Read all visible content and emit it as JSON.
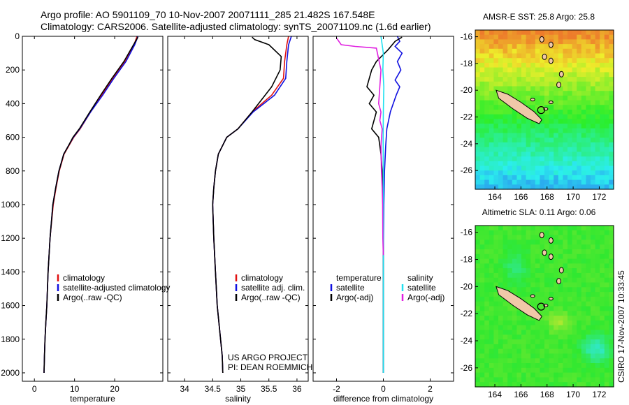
{
  "header": {
    "line1": "Argo profile: AO 5901109_70 10-Nov-2007 20071111_285 21.482S 167.548E",
    "line2": "Climatology: CARS2006. Satellite-adjusted climatology: synTS_20071109.nc (1.6d earlier)"
  },
  "credit": {
    "project": "US ARGO PROJECT",
    "pi": "PI: DEAN ROEMMICH",
    "stamp": "CSIRO 17-Nov-2007 10:33:45"
  },
  "colors": {
    "climatology": "#e01010",
    "satellite": "#1010e0",
    "argo": "#000000",
    "salinity_sat": "#20e0f0",
    "salinity_argo": "#e020e0"
  },
  "chart_data": [
    {
      "type": "line",
      "id": "temperature",
      "xlabel": "temperature",
      "ylabel": "",
      "xlim": [
        -3,
        32
      ],
      "ylim": [
        2050,
        0
      ],
      "xticks": [
        0,
        10,
        20
      ],
      "yticks": [
        0,
        200,
        400,
        600,
        800,
        1000,
        1200,
        1400,
        1600,
        1800,
        2000
      ],
      "legend": [
        "climatology",
        "satellite-adjusted climatology",
        "Argo(..raw -QC)"
      ],
      "series": [
        {
          "name": "climatology",
          "color_key": "climatology",
          "x": [
            25.6,
            24.8,
            22.5,
            19.5,
            16.8,
            14.0,
            11.4,
            9.8,
            8.6,
            7.4,
            6.2,
            5.4,
            4.7,
            3.9,
            3.4,
            3.1,
            2.85,
            2.65,
            2.5,
            2.4
          ],
          "y": [
            0,
            50,
            150,
            250,
            350,
            450,
            550,
            600,
            650,
            700,
            800,
            900,
            1000,
            1200,
            1400,
            1600,
            1700,
            1800,
            1900,
            2000
          ]
        },
        {
          "name": "satellite",
          "color_key": "satellite",
          "x": [
            25.8,
            25.0,
            22.8,
            19.8,
            17.0,
            14.0,
            11.3,
            9.7,
            8.5,
            7.3,
            6.1,
            5.3,
            4.6,
            3.9,
            3.4,
            3.1,
            2.85,
            2.65,
            2.5,
            2.4
          ],
          "y": [
            0,
            50,
            150,
            250,
            350,
            450,
            550,
            600,
            650,
            700,
            800,
            900,
            1000,
            1200,
            1400,
            1600,
            1700,
            1800,
            1900,
            2000
          ]
        },
        {
          "name": "Argo",
          "color_key": "argo",
          "x": [
            25.8,
            24.7,
            22.3,
            19.3,
            16.5,
            13.8,
            11.2,
            9.6,
            8.5,
            7.3,
            6.1,
            5.3,
            4.6,
            3.9,
            3.4,
            3.1,
            2.85,
            2.65,
            2.5,
            2.4
          ],
          "y": [
            5,
            50,
            150,
            250,
            350,
            450,
            550,
            600,
            650,
            700,
            800,
            900,
            1000,
            1200,
            1400,
            1600,
            1700,
            1800,
            1900,
            2000
          ]
        }
      ]
    },
    {
      "type": "line",
      "id": "salinity",
      "xlabel": "salinity",
      "ylabel": "",
      "xlim": [
        33.7,
        36.2
      ],
      "ylim": [
        2050,
        0
      ],
      "xticks": [
        34,
        34.5,
        35,
        35.5,
        36
      ],
      "legend": [
        "climatology",
        "satellite adj. clim.",
        "Argo(..raw -QC)"
      ],
      "series": [
        {
          "name": "climatology",
          "color_key": "climatology",
          "x": [
            35.85,
            35.82,
            35.78,
            35.76,
            35.55,
            35.2,
            34.95,
            34.75,
            34.6,
            34.55,
            34.52,
            34.5,
            34.52,
            34.55,
            34.58,
            34.61,
            34.64,
            34.67,
            34.68
          ],
          "y": [
            0,
            50,
            150,
            250,
            350,
            450,
            550,
            600,
            700,
            800,
            900,
            1000,
            1200,
            1400,
            1600,
            1700,
            1800,
            1900,
            2000
          ]
        },
        {
          "name": "satellite",
          "color_key": "satellite",
          "x": [
            35.9,
            35.85,
            35.82,
            35.8,
            35.6,
            35.22,
            34.95,
            34.75,
            34.6,
            34.55,
            34.52,
            34.5,
            34.52,
            34.55,
            34.58,
            34.61,
            34.64,
            34.67,
            34.68
          ],
          "y": [
            0,
            50,
            150,
            250,
            350,
            450,
            550,
            600,
            700,
            800,
            900,
            1000,
            1200,
            1400,
            1600,
            1700,
            1800,
            1900,
            2000
          ]
        },
        {
          "name": "Argo",
          "color_key": "argo",
          "x": [
            35.2,
            35.25,
            35.5,
            35.72,
            35.7,
            35.55,
            35.2,
            34.95,
            34.75,
            34.6,
            34.55,
            34.52,
            34.5,
            34.52,
            34.55,
            34.58,
            34.61,
            34.64,
            34.67,
            34.68
          ],
          "y": [
            5,
            20,
            50,
            120,
            200,
            300,
            450,
            550,
            600,
            700,
            800,
            900,
            1000,
            1200,
            1400,
            1600,
            1700,
            1800,
            1900,
            2000
          ]
        }
      ]
    },
    {
      "type": "line",
      "id": "difference",
      "xlabel": "difference from climatology",
      "ylabel": "",
      "xlim": [
        -3,
        3
      ],
      "ylim": [
        2050,
        0
      ],
      "xticks": [
        -2,
        0,
        2
      ],
      "legend_temperature": [
        "temperature",
        "satellite",
        "Argo(-adj)"
      ],
      "legend_salinity": [
        "salinity",
        "satellite",
        "Argo(-adj)"
      ],
      "series": [
        {
          "name": "temperature satellite",
          "color_key": "satellite",
          "x": [
            0.6,
            0.7,
            0.5,
            0.8,
            0.6,
            0.75,
            0.5,
            0.7,
            0.55,
            0.3,
            0.15,
            0.1,
            0.05,
            0.02,
            0.0,
            0.0,
            0.0,
            0.0
          ],
          "y": [
            0,
            30,
            60,
            100,
            150,
            200,
            260,
            300,
            350,
            450,
            550,
            650,
            800,
            1000,
            1300,
            1600,
            1800,
            2000
          ]
        },
        {
          "name": "temperature Argo",
          "color_key": "argo",
          "x": [
            0.8,
            0.5,
            0.2,
            -0.3,
            -0.5,
            -0.7,
            -0.4,
            -0.6,
            -0.3,
            -0.5,
            -0.2,
            -0.1,
            -0.05,
            -0.02,
            0.0,
            0.0,
            0.0
          ],
          "y": [
            5,
            30,
            80,
            150,
            200,
            300,
            350,
            400,
            450,
            550,
            600,
            700,
            800,
            1000,
            1300,
            1600,
            2000
          ]
        },
        {
          "name": "salinity satellite",
          "color_key": "salinity_sat",
          "x": [
            -0.1,
            -0.05,
            0.0,
            -0.02,
            0.02,
            0.0,
            -0.01,
            0.0,
            0.0,
            0.0,
            0.0
          ],
          "y": [
            0,
            50,
            100,
            200,
            300,
            450,
            600,
            800,
            1200,
            1600,
            2000
          ]
        },
        {
          "name": "salinity Argo",
          "color_key": "salinity_argo",
          "x": [
            -2.0,
            -1.8,
            -1.2,
            -0.3,
            -0.1,
            -0.2,
            -0.1,
            -0.15,
            -0.05,
            -0.1,
            -0.08,
            -0.05,
            -0.03,
            -0.02,
            0.0
          ],
          "y": [
            10,
            50,
            60,
            70,
            200,
            400,
            450,
            500,
            550,
            650,
            800,
            900,
            1000,
            1200,
            1300
          ]
        }
      ]
    },
    {
      "type": "heatmap",
      "id": "sst_map",
      "title": "AMSR-E SST: 25.8 Argo: 25.8",
      "xlim": [
        162.5,
        173.1
      ],
      "ylim": [
        -27.4,
        -15.5
      ],
      "xticks": [
        164,
        166,
        168,
        170,
        172
      ],
      "yticks": [
        -16,
        -18,
        -20,
        -22,
        -24,
        -26
      ],
      "marker": {
        "lon": 167.548,
        "lat": -21.482
      }
    },
    {
      "type": "heatmap",
      "id": "sla_map",
      "title": "Altimetric SLA: 0.11 Argo: 0.06",
      "xlim": [
        162.5,
        173.1
      ],
      "ylim": [
        -27.4,
        -15.5
      ],
      "xticks": [
        164,
        166,
        168,
        170,
        172
      ],
      "yticks": [
        -16,
        -18,
        -20,
        -22,
        -24,
        -26
      ],
      "marker": {
        "lon": 167.548,
        "lat": -21.482
      }
    }
  ]
}
